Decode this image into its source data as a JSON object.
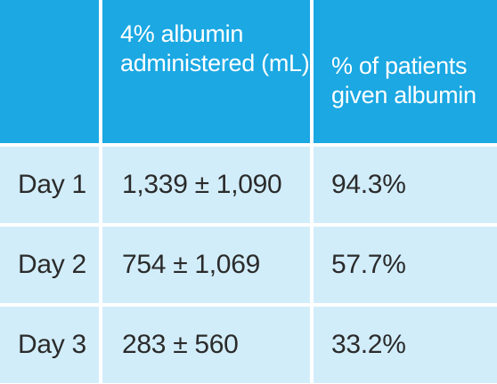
{
  "table": {
    "headers": [
      "",
      "4% albumin administered (mL)",
      "% of patients given albumin"
    ],
    "rows": [
      {
        "day": "Day 1",
        "albumin_ml": "1,339 ± 1,090",
        "pct_patients": "94.3%"
      },
      {
        "day": "Day 2",
        "albumin_ml": "754 ± 1,069",
        "pct_patients": "57.7%"
      },
      {
        "day": "Day 3",
        "albumin_ml": "283 ± 560",
        "pct_patients": "33.2%"
      }
    ]
  },
  "colors": {
    "header_bg": "#1ba8e3",
    "body_bg": "#d2edfa",
    "header_text": "#ffffff",
    "body_text": "#2b2b2b",
    "grid_lines": "#ffffff"
  }
}
